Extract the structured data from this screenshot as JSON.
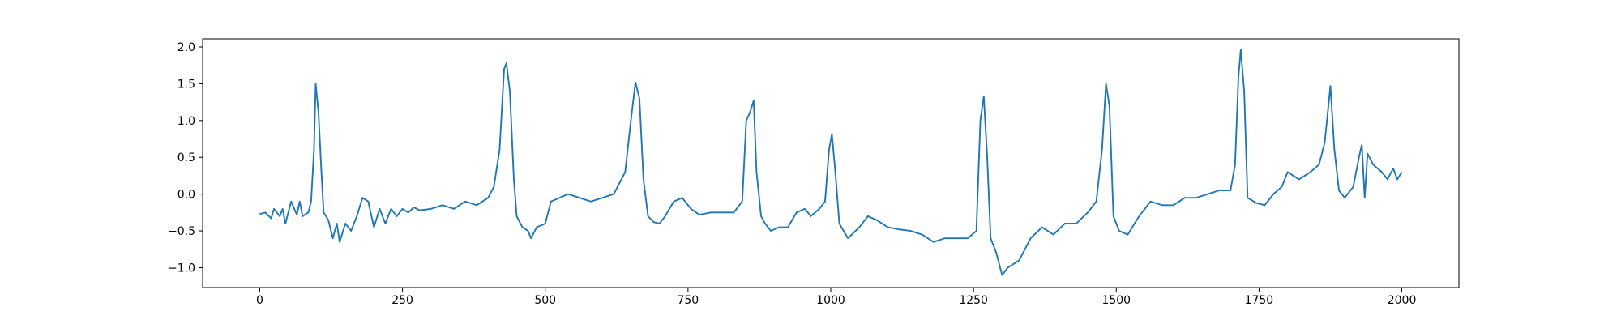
{
  "chart_data": {
    "type": "line",
    "x": [
      0,
      10,
      20,
      25,
      35,
      40,
      45,
      55,
      65,
      70,
      75,
      85,
      90,
      95,
      98,
      103,
      108,
      112,
      120,
      128,
      135,
      140,
      150,
      160,
      170,
      180,
      190,
      200,
      210,
      220,
      230,
      240,
      250,
      260,
      270,
      280,
      300,
      320,
      340,
      360,
      380,
      400,
      410,
      420,
      428,
      432,
      438,
      445,
      450,
      460,
      470,
      475,
      485,
      500,
      510,
      525,
      540,
      560,
      580,
      600,
      620,
      640,
      650,
      658,
      665,
      672,
      680,
      690,
      700,
      710,
      725,
      740,
      755,
      770,
      790,
      810,
      830,
      845,
      852,
      858,
      865,
      870,
      878,
      885,
      895,
      910,
      925,
      940,
      955,
      965,
      980,
      990,
      997,
      1002,
      1008,
      1015,
      1030,
      1050,
      1065,
      1080,
      1100,
      1120,
      1140,
      1160,
      1180,
      1200,
      1220,
      1240,
      1255,
      1262,
      1268,
      1274,
      1280,
      1290,
      1300,
      1310,
      1330,
      1350,
      1370,
      1390,
      1410,
      1430,
      1450,
      1465,
      1475,
      1482,
      1488,
      1495,
      1505,
      1520,
      1540,
      1560,
      1580,
      1600,
      1620,
      1640,
      1660,
      1680,
      1700,
      1708,
      1714,
      1718,
      1724,
      1730,
      1745,
      1760,
      1775,
      1790,
      1800,
      1820,
      1840,
      1855,
      1865,
      1875,
      1882,
      1890,
      1900,
      1915,
      1925,
      1930,
      1935,
      1940,
      1950,
      1965,
      1975,
      1985,
      1992,
      2000
    ],
    "series": [
      {
        "color": "#1f77b4",
        "values": [
          -0.27,
          -0.25,
          -0.33,
          -0.2,
          -0.3,
          -0.2,
          -0.4,
          -0.1,
          -0.28,
          -0.1,
          -0.3,
          -0.25,
          -0.1,
          0.6,
          1.5,
          1.1,
          0.3,
          -0.25,
          -0.35,
          -0.6,
          -0.4,
          -0.65,
          -0.4,
          -0.5,
          -0.3,
          -0.05,
          -0.1,
          -0.45,
          -0.2,
          -0.4,
          -0.2,
          -0.3,
          -0.2,
          -0.25,
          -0.18,
          -0.22,
          -0.2,
          -0.15,
          -0.2,
          -0.1,
          -0.15,
          -0.05,
          0.1,
          0.6,
          1.7,
          1.78,
          1.4,
          0.2,
          -0.3,
          -0.45,
          -0.5,
          -0.6,
          -0.45,
          -0.4,
          -0.1,
          -0.05,
          0.0,
          -0.05,
          -0.1,
          -0.05,
          0.0,
          0.3,
          1.0,
          1.52,
          1.3,
          0.2,
          -0.3,
          -0.38,
          -0.4,
          -0.3,
          -0.1,
          -0.05,
          -0.2,
          -0.28,
          -0.25,
          -0.25,
          -0.25,
          -0.1,
          1.0,
          1.1,
          1.27,
          0.3,
          -0.3,
          -0.4,
          -0.5,
          -0.45,
          -0.45,
          -0.25,
          -0.2,
          -0.3,
          -0.2,
          -0.1,
          0.6,
          0.82,
          0.3,
          -0.4,
          -0.6,
          -0.45,
          -0.3,
          -0.35,
          -0.45,
          -0.48,
          -0.5,
          -0.55,
          -0.65,
          -0.6,
          -0.6,
          -0.6,
          -0.5,
          1.0,
          1.33,
          0.5,
          -0.6,
          -0.8,
          -1.1,
          -1.0,
          -0.9,
          -0.6,
          -0.45,
          -0.55,
          -0.4,
          -0.4,
          -0.25,
          -0.1,
          0.6,
          1.5,
          1.2,
          -0.3,
          -0.5,
          -0.55,
          -0.3,
          -0.1,
          -0.15,
          -0.15,
          -0.05,
          -0.05,
          0.0,
          0.05,
          0.05,
          0.4,
          1.6,
          1.96,
          1.4,
          -0.05,
          -0.12,
          -0.15,
          0.0,
          0.1,
          0.3,
          0.2,
          0.3,
          0.4,
          0.7,
          1.47,
          0.6,
          0.05,
          -0.05,
          0.1,
          0.5,
          0.67,
          -0.05,
          0.55,
          0.4,
          0.3,
          0.2,
          0.35,
          0.2,
          0.3
        ]
      }
    ],
    "xlim": [
      -100,
      2100
    ],
    "xticks": [
      0,
      250,
      500,
      750,
      1000,
      1250,
      1500,
      1750,
      2000
    ],
    "ylim": [
      -1.27,
      2.11
    ],
    "yticks": [
      {
        "value": -1.0,
        "label": "−1.0"
      },
      {
        "value": -0.5,
        "label": "−0.5"
      },
      {
        "value": 0.0,
        "label": "0.0"
      },
      0.5,
      {
        "value": 1.0,
        "label": "1.0"
      },
      1.5,
      {
        "value": 2.0,
        "label": "2.0"
      }
    ],
    "grid": false
  }
}
